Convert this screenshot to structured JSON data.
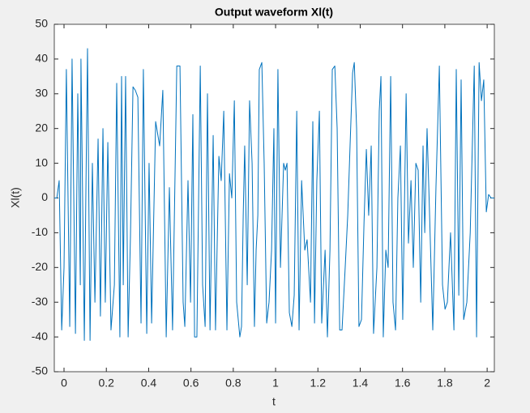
{
  "chart_data": {
    "type": "line",
    "title": "Output waveform Xl(t)",
    "xlabel": "t",
    "ylabel": "Xl(t)",
    "xlim": [
      -0.046,
      2.034
    ],
    "ylim": [
      -50,
      50
    ],
    "xticks": [
      0,
      0.2,
      0.4,
      0.6,
      0.8,
      1,
      1.2,
      1.4,
      1.6,
      1.8,
      2
    ],
    "yticks": [
      -50,
      -40,
      -30,
      -20,
      -10,
      0,
      10,
      20,
      30,
      40,
      50
    ],
    "grid": false,
    "series": [
      {
        "color": "#0072bd",
        "x": [
          -0.046,
          -0.034,
          -0.023,
          -0.011,
          0,
          0.011,
          0.027,
          0.038,
          0.054,
          0.065,
          0.077,
          0.08,
          0.096,
          0.103,
          0.111,
          0.123,
          0.134,
          0.146,
          0.161,
          0.172,
          0.184,
          0.195,
          0.207,
          0.222,
          0.238,
          0.249,
          0.264,
          0.272,
          0.28,
          0.291,
          0.303,
          0.314,
          0.326,
          0.337,
          0.349,
          0.364,
          0.375,
          0.391,
          0.402,
          0.414,
          0.433,
          0.452,
          0.467,
          0.483,
          0.498,
          0.513,
          0.533,
          0.548,
          0.563,
          0.571,
          0.586,
          0.598,
          0.609,
          0.617,
          0.628,
          0.644,
          0.655,
          0.667,
          0.678,
          0.69,
          0.705,
          0.716,
          0.732,
          0.743,
          0.755,
          0.77,
          0.782,
          0.793,
          0.805,
          0.816,
          0.831,
          0.839,
          0.847,
          0.854,
          0.866,
          0.877,
          0.889,
          0.9,
          0.908,
          0.916,
          0.923,
          0.935,
          0.946,
          0.958,
          0.969,
          0.981,
          0.992,
          1.0,
          1.011,
          1.023,
          1.038,
          1.046,
          1.054,
          1.065,
          1.077,
          1.088,
          1.1,
          1.111,
          1.123,
          1.138,
          1.149,
          1.165,
          1.176,
          1.184,
          1.195,
          1.207,
          1.218,
          1.234,
          1.245,
          1.257,
          1.268,
          1.28,
          1.291,
          1.303,
          1.314,
          1.329,
          1.341,
          1.352,
          1.364,
          1.372,
          1.383,
          1.394,
          1.406,
          1.418,
          1.429,
          1.44,
          1.452,
          1.463,
          1.479,
          1.49,
          1.498,
          1.509,
          1.521,
          1.532,
          1.544,
          1.555,
          1.567,
          1.578,
          1.59,
          1.601,
          1.617,
          1.628,
          1.64,
          1.651,
          1.663,
          1.674,
          1.686,
          1.697,
          1.705,
          1.716,
          1.728,
          1.743,
          1.758,
          1.774,
          1.789,
          1.801,
          1.812,
          1.827,
          1.843,
          1.854,
          1.866,
          1.877,
          1.889,
          1.904,
          1.92,
          1.939,
          1.95,
          1.962,
          1.973,
          1.984,
          1.996,
          2.007,
          2.019,
          2.034
        ],
        "values": [
          0,
          0,
          5,
          -38,
          -20,
          37,
          -37,
          40,
          -39,
          30,
          -25,
          40,
          -41,
          0,
          43,
          -41,
          10,
          -30,
          17,
          -34,
          20,
          -30,
          16,
          -38,
          -25,
          33,
          -40,
          35,
          -25,
          35,
          -40,
          -11,
          32,
          31,
          29,
          -36,
          37,
          -39,
          10,
          -36,
          22,
          15,
          31,
          -40,
          3,
          -38,
          38,
          38,
          -30,
          -37,
          5,
          -30,
          24,
          -40,
          -40,
          38,
          -25,
          -37,
          30,
          -38,
          18,
          -38,
          12,
          5,
          25,
          -38,
          7,
          0,
          28,
          -30,
          -40,
          -37,
          -5,
          15,
          -25,
          28,
          10,
          -37,
          -15,
          -5,
          37,
          39,
          10,
          -36,
          -30,
          -15,
          20,
          -36,
          37,
          -20,
          10,
          8,
          10,
          -33,
          -37,
          -28,
          25,
          -38,
          5,
          -15,
          -12,
          -30,
          22,
          -36,
          5,
          25,
          -36,
          -15,
          -40,
          -15,
          37,
          38,
          20,
          -38,
          -38,
          -20,
          -5,
          15,
          36,
          39,
          20,
          -37,
          -35,
          -7,
          14,
          -5,
          15,
          -39,
          -20,
          25,
          35,
          -40,
          -15,
          -20,
          35,
          -30,
          -38,
          0,
          15,
          -35,
          30,
          -13,
          5,
          -20,
          10,
          8,
          -30,
          15,
          -10,
          20,
          -5,
          -38,
          3,
          38,
          -25,
          -32,
          -30,
          -10,
          -38,
          37,
          -28,
          34,
          -35,
          -30,
          -10,
          38,
          -40,
          39,
          28,
          34,
          -4,
          1,
          0,
          0
        ]
      }
    ]
  }
}
